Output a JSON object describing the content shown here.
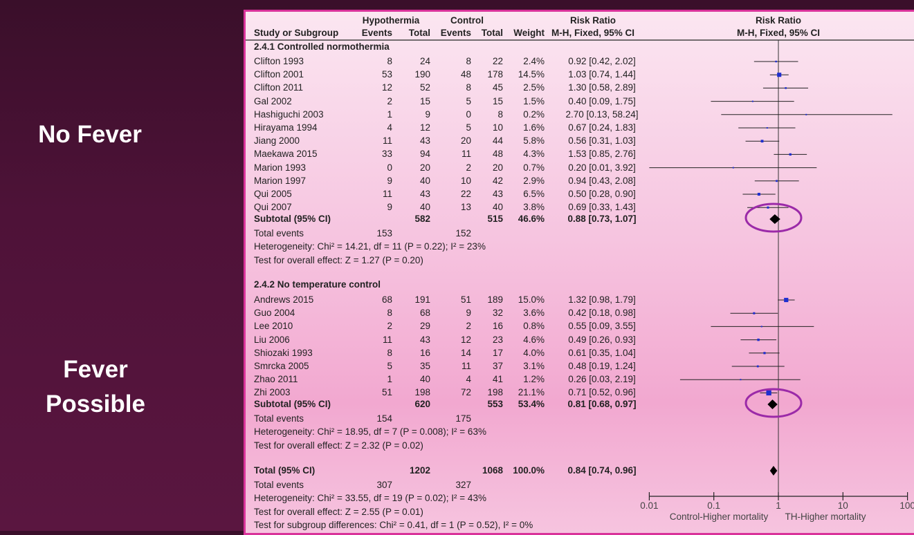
{
  "side_labels": {
    "top": "No Fever",
    "bottom_line1": "Fever",
    "bottom_line2": "Possible"
  },
  "header": {
    "hyp": "Hypothermia",
    "ctrl": "Control",
    "rr1": "Risk Ratio",
    "rr2": "Risk Ratio",
    "study": "Study or Subgroup",
    "events": "Events",
    "total": "Total",
    "weight": "Weight",
    "method": "M-H, Fixed, 95% CI"
  },
  "chart_data": {
    "type": "forest",
    "x_scale": "log",
    "xlim": [
      0.01,
      100
    ],
    "x_ticks": [
      "0.01",
      "0.1",
      "1",
      "10",
      "100"
    ],
    "x_label_left": "Control-Higher mortality",
    "x_label_right": "TH-Higher mortality",
    "colors": {
      "study_marker": "#1f2fd0",
      "diamond": "#000000",
      "highlight_ellipse": "#9b2aa8",
      "border": "#d9329a"
    },
    "groups": [
      {
        "title": "2.4.1 Controlled normothermia",
        "studies": [
          {
            "name": "Clifton 1993",
            "he": 8,
            "ht": 24,
            "ce": 8,
            "ct": 22,
            "w": "2.4%",
            "rr": 0.92,
            "lo": 0.42,
            "hi": 2.02
          },
          {
            "name": "Clifton 2001",
            "he": 53,
            "ht": 190,
            "ce": 48,
            "ct": 178,
            "w": "14.5%",
            "rr": 1.03,
            "lo": 0.74,
            "hi": 1.44
          },
          {
            "name": "Clifton 2011",
            "he": 12,
            "ht": 52,
            "ce": 8,
            "ct": 45,
            "w": "2.5%",
            "rr": 1.3,
            "lo": 0.58,
            "hi": 2.89
          },
          {
            "name": "Gal 2002",
            "he": 2,
            "ht": 15,
            "ce": 5,
            "ct": 15,
            "w": "1.5%",
            "rr": 0.4,
            "lo": 0.09,
            "hi": 1.75
          },
          {
            "name": "Hashiguchi 2003",
            "he": 1,
            "ht": 9,
            "ce": 0,
            "ct": 8,
            "w": "0.2%",
            "rr": 2.7,
            "lo": 0.13,
            "hi": 58.24
          },
          {
            "name": "Hirayama 1994",
            "he": 4,
            "ht": 12,
            "ce": 5,
            "ct": 10,
            "w": "1.6%",
            "rr": 0.67,
            "lo": 0.24,
            "hi": 1.83
          },
          {
            "name": "Jiang 2000",
            "he": 11,
            "ht": 43,
            "ce": 20,
            "ct": 44,
            "w": "5.8%",
            "rr": 0.56,
            "lo": 0.31,
            "hi": 1.03
          },
          {
            "name": "Maekawa 2015",
            "he": 33,
            "ht": 94,
            "ce": 11,
            "ct": 48,
            "w": "4.3%",
            "rr": 1.53,
            "lo": 0.85,
            "hi": 2.76
          },
          {
            "name": "Marion 1993",
            "he": 0,
            "ht": 20,
            "ce": 2,
            "ct": 20,
            "w": "0.7%",
            "rr": 0.2,
            "lo": 0.01,
            "hi": 3.92
          },
          {
            "name": "Marion 1997",
            "he": 9,
            "ht": 40,
            "ce": 10,
            "ct": 42,
            "w": "2.9%",
            "rr": 0.94,
            "lo": 0.43,
            "hi": 2.08
          },
          {
            "name": "Qui 2005",
            "he": 11,
            "ht": 43,
            "ce": 22,
            "ct": 43,
            "w": "6.5%",
            "rr": 0.5,
            "lo": 0.28,
            "hi": 0.9
          },
          {
            "name": "Qui 2007",
            "he": 9,
            "ht": 40,
            "ce": 13,
            "ct": 40,
            "w": "3.8%",
            "rr": 0.69,
            "lo": 0.33,
            "hi": 1.43
          }
        ],
        "subtotal": {
          "label": "Subtotal (95% CI)",
          "ht": 582,
          "ct": 515,
          "w": "46.6%",
          "rr": 0.88,
          "lo": 0.73,
          "hi": 1.07
        },
        "events": {
          "label": "Total events",
          "he": 153,
          "ce": 152
        },
        "het": "Heterogeneity: Chi² = 14.21, df = 11 (P = 0.22); I² = 23%",
        "test": "Test for overall effect: Z = 1.27 (P = 0.20)"
      },
      {
        "title": "2.4.2 No temperature control",
        "studies": [
          {
            "name": "Andrews 2015",
            "he": 68,
            "ht": 191,
            "ce": 51,
            "ct": 189,
            "w": "15.0%",
            "rr": 1.32,
            "lo": 0.98,
            "hi": 1.79
          },
          {
            "name": "Guo 2004",
            "he": 8,
            "ht": 68,
            "ce": 9,
            "ct": 32,
            "w": "3.6%",
            "rr": 0.42,
            "lo": 0.18,
            "hi": 0.98
          },
          {
            "name": "Lee 2010",
            "he": 2,
            "ht": 29,
            "ce": 2,
            "ct": 16,
            "w": "0.8%",
            "rr": 0.55,
            "lo": 0.09,
            "hi": 3.55
          },
          {
            "name": "Liu 2006",
            "he": 11,
            "ht": 43,
            "ce": 12,
            "ct": 23,
            "w": "4.6%",
            "rr": 0.49,
            "lo": 0.26,
            "hi": 0.93
          },
          {
            "name": "Shiozaki 1993",
            "he": 8,
            "ht": 16,
            "ce": 14,
            "ct": 17,
            "w": "4.0%",
            "rr": 0.61,
            "lo": 0.35,
            "hi": 1.04
          },
          {
            "name": "Smrcka 2005",
            "he": 5,
            "ht": 35,
            "ce": 11,
            "ct": 37,
            "w": "3.1%",
            "rr": 0.48,
            "lo": 0.19,
            "hi": 1.24
          },
          {
            "name": "Zhao 2011",
            "he": 1,
            "ht": 40,
            "ce": 4,
            "ct": 41,
            "w": "1.2%",
            "rr": 0.26,
            "lo": 0.03,
            "hi": 2.19
          },
          {
            "name": "Zhi 2003",
            "he": 51,
            "ht": 198,
            "ce": 72,
            "ct": 198,
            "w": "21.1%",
            "rr": 0.71,
            "lo": 0.52,
            "hi": 0.96
          }
        ],
        "subtotal": {
          "label": "Subtotal (95% CI)",
          "ht": 620,
          "ct": 553,
          "w": "53.4%",
          "rr": 0.81,
          "lo": 0.68,
          "hi": 0.97
        },
        "events": {
          "label": "Total events",
          "he": 154,
          "ce": 175
        },
        "het": "Heterogeneity: Chi² = 18.95, df = 7 (P = 0.008); I² = 63%",
        "test": "Test for overall effect: Z = 2.32 (P = 0.02)"
      }
    ],
    "total": {
      "label": "Total (95% CI)",
      "ht": 1202,
      "ct": 1068,
      "w": "100.0%",
      "rr": 0.84,
      "lo": 0.74,
      "hi": 0.96
    },
    "total_events": {
      "label": "Total events",
      "he": 307,
      "ce": 327
    },
    "total_het": "Heterogeneity: Chi² = 33.55, df = 19 (P = 0.02); I² = 43%",
    "total_test": "Test for overall effect: Z = 2.55 (P = 0.01)",
    "subgroup_test": "Test for subgroup differences: Chi² = 0.41, df = 1 (P = 0.52), I² = 0%"
  }
}
